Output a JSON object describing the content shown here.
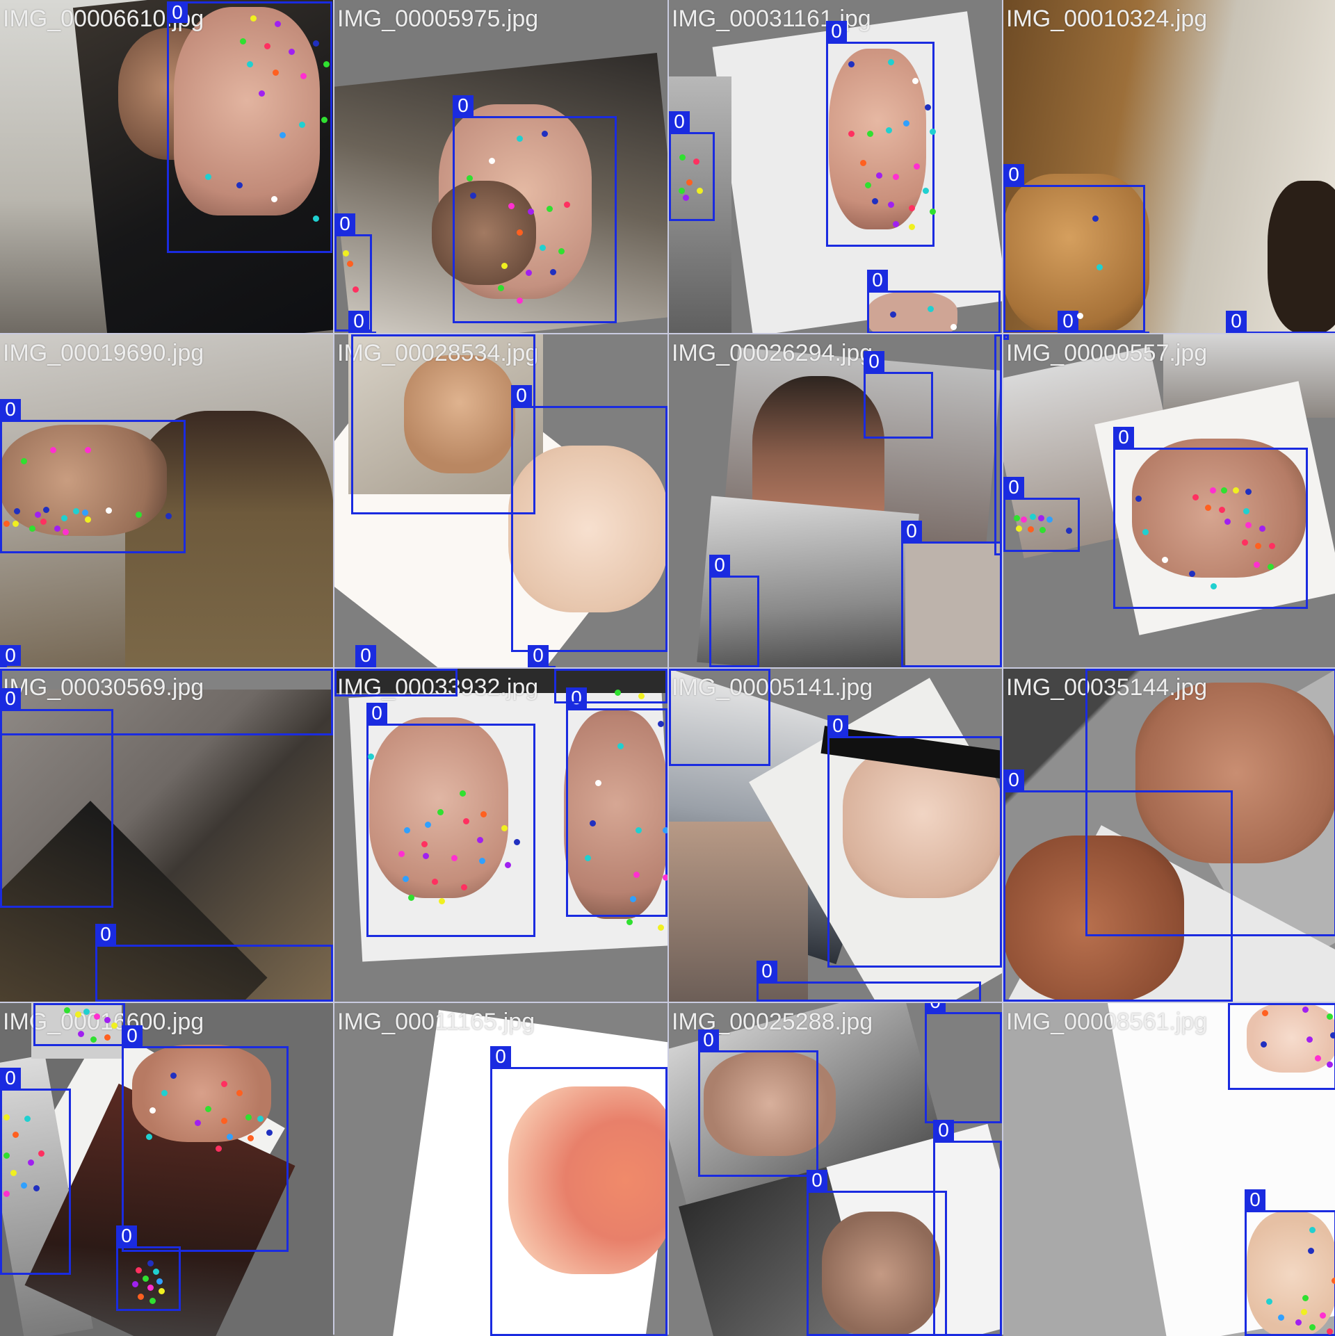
{
  "annotation": {
    "box_label": "0",
    "box_color": "#1a2be0",
    "keypoint_colors": [
      "#ff2fd0",
      "#20d0d0",
      "#2030c0",
      "#30e030",
      "#ff6020",
      "#a020f0",
      "#f0f020",
      "#ffffff",
      "#ff3060",
      "#30a0ff"
    ]
  },
  "tiles": [
    {
      "filename": "IMG_00006610.jpg"
    },
    {
      "filename": "IMG_00005975.jpg"
    },
    {
      "filename": "IMG_00031161.jpg"
    },
    {
      "filename": "IMG_00010324.jpg"
    },
    {
      "filename": "IMG_00019690.jpg"
    },
    {
      "filename": "IMG_00028534.jpg"
    },
    {
      "filename": "IMG_00026294.jpg"
    },
    {
      "filename": "IMG_00000557.jpg"
    },
    {
      "filename": "IMG_00030569.jpg"
    },
    {
      "filename": "IMG_00033932.jpg"
    },
    {
      "filename": "IMG_00005141.jpg"
    },
    {
      "filename": "IMG_00035144.jpg"
    },
    {
      "filename": "IMG_00016600.jpg"
    },
    {
      "filename": "IMG_00011165.jpg"
    },
    {
      "filename": "IMG_00025288.jpg"
    },
    {
      "filename": "IMG_00008561.jpg"
    }
  ]
}
